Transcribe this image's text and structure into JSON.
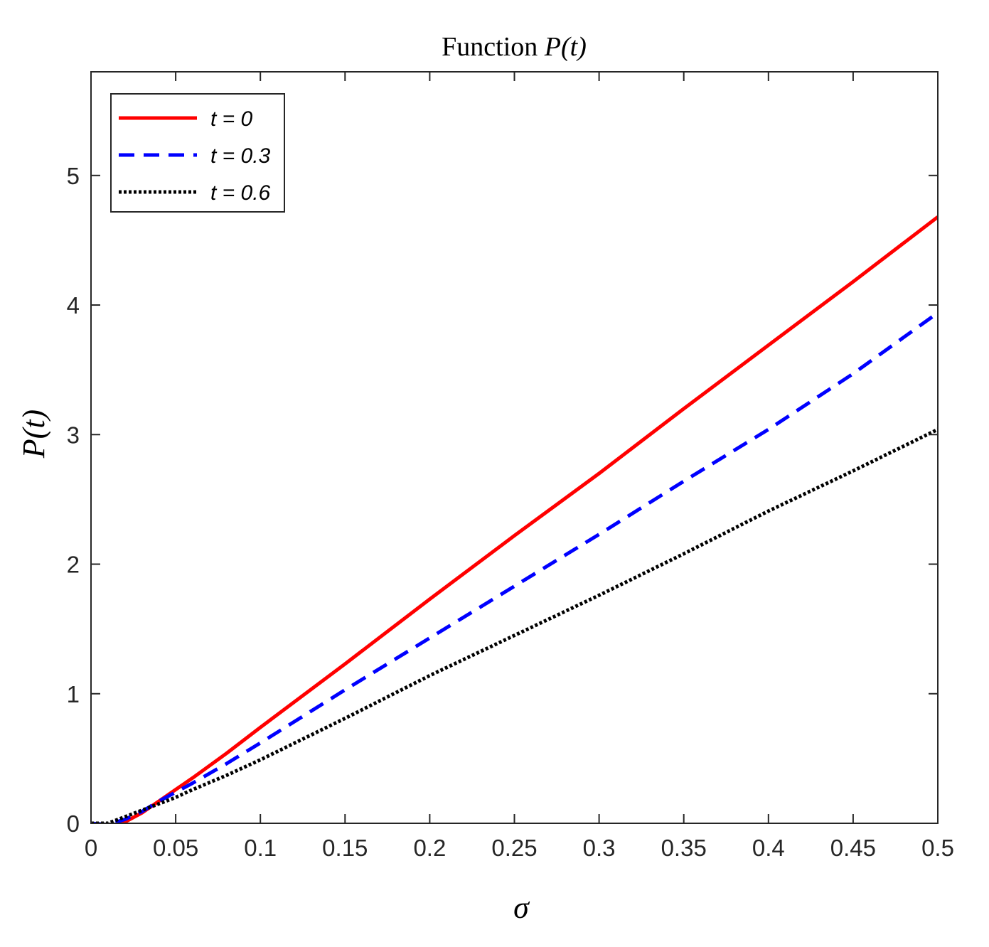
{
  "chart_data": {
    "type": "line",
    "title": "Function",
    "title_math": "P(t)",
    "xlabel": "σ",
    "ylabel": "P(t)",
    "xlim": [
      0,
      0.5
    ],
    "ylim": [
      0,
      5.8
    ],
    "xticks": [
      0,
      0.05,
      0.1,
      0.15,
      0.2,
      0.25,
      0.3,
      0.35,
      0.4,
      0.45,
      0.5
    ],
    "xtick_labels": [
      "0",
      "0.05",
      "0.1",
      "0.15",
      "0.2",
      "0.25",
      "0.3",
      "0.35",
      "0.4",
      "0.45",
      "0.5"
    ],
    "yticks": [
      0,
      1,
      2,
      3,
      4,
      5
    ],
    "ytick_labels": [
      "0",
      "1",
      "2",
      "3",
      "4",
      "5"
    ],
    "grid": false,
    "legend_position": "top-left",
    "series": [
      {
        "name": "t = 0",
        "color": "#ff0000",
        "style": "solid",
        "x": [
          0,
          0.01,
          0.02,
          0.03,
          0.04,
          0.05,
          0.06,
          0.08,
          0.1,
          0.15,
          0.2,
          0.25,
          0.3,
          0.35,
          0.4,
          0.45,
          0.5
        ],
        "y": [
          0,
          -0.03,
          0.01,
          0.08,
          0.17,
          0.26,
          0.35,
          0.54,
          0.74,
          1.23,
          1.73,
          2.22,
          2.7,
          3.2,
          3.69,
          4.18,
          4.68
        ]
      },
      {
        "name": "t = 0.3",
        "color": "#0000ff",
        "style": "dashed",
        "x": [
          0,
          0.01,
          0.02,
          0.03,
          0.04,
          0.05,
          0.06,
          0.08,
          0.1,
          0.15,
          0.2,
          0.25,
          0.3,
          0.35,
          0.4,
          0.45,
          0.5
        ],
        "y": [
          0,
          -0.01,
          0.03,
          0.09,
          0.17,
          0.24,
          0.31,
          0.46,
          0.62,
          1.03,
          1.43,
          1.83,
          2.23,
          2.64,
          3.04,
          3.47,
          3.94
        ]
      },
      {
        "name": "t = 0.6",
        "color": "#000000",
        "style": "dotted",
        "x": [
          0,
          0.01,
          0.02,
          0.03,
          0.04,
          0.05,
          0.06,
          0.08,
          0.1,
          0.15,
          0.2,
          0.25,
          0.3,
          0.35,
          0.4,
          0.45,
          0.5
        ],
        "y": [
          0,
          0.0,
          0.05,
          0.1,
          0.15,
          0.2,
          0.26,
          0.37,
          0.49,
          0.81,
          1.14,
          1.45,
          1.76,
          2.08,
          2.41,
          2.72,
          3.04
        ]
      }
    ]
  }
}
